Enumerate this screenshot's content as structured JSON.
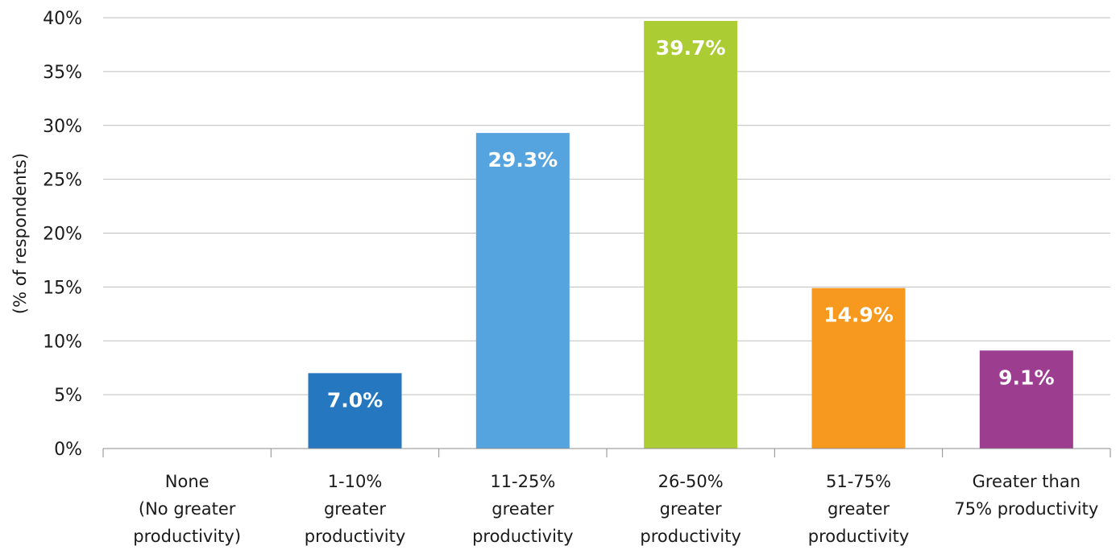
{
  "chart_data": {
    "type": "bar",
    "ylabel": "(% of respondents)",
    "xlabel": "",
    "ylim": [
      0,
      40
    ],
    "y_ticks": [
      0,
      5,
      10,
      15,
      20,
      25,
      30,
      35,
      40
    ],
    "y_tick_labels": [
      "0%",
      "5%",
      "10%",
      "15%",
      "20%",
      "25%",
      "30%",
      "35%",
      "40%"
    ],
    "grid": true,
    "categories": [
      [
        "None",
        "(No greater",
        "productivity)"
      ],
      [
        "1-10%",
        "greater",
        "productivity"
      ],
      [
        "11-25%",
        "greater",
        "productivity"
      ],
      [
        "26-50%",
        "greater",
        "productivity"
      ],
      [
        "51-75%",
        "greater",
        "productivity"
      ],
      [
        "Greater than",
        "75% productivity"
      ]
    ],
    "values": [
      0,
      7.0,
      29.3,
      39.7,
      14.9,
      9.1
    ],
    "value_labels": [
      "",
      "7.0%",
      "29.3%",
      "39.7%",
      "14.9%",
      "9.1%"
    ],
    "colors": [
      "#2577bf",
      "#2577bf",
      "#55a4e0",
      "#abcc33",
      "#f7991f",
      "#9c3d8f"
    ]
  }
}
